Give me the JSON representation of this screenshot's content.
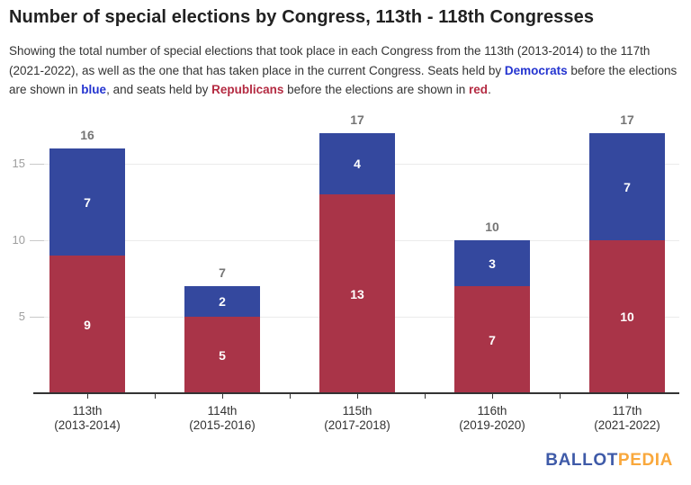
{
  "title": "Number of special elections by Congress, 113th - 118th Congresses",
  "subtitle": {
    "part1": "Showing the total number of special elections that took place in each Congress from the 113th (2013-2014) to the 117th (2021-2022), as well as the one that has taken place in the current Congress. Seats held by ",
    "democrats_word": "Democrats",
    "part2": " before the elections are shown in ",
    "blue_word": "blue",
    "part3": ", and seats held by ",
    "republicans_word": "Republicans",
    "part4": " before the elections are shown in ",
    "red_word": "red",
    "part5": "."
  },
  "text_colors": {
    "democrat_text": "#2434d0",
    "republican_text": "#b42b42"
  },
  "chart_data": {
    "type": "bar",
    "stacked": true,
    "title": "Number of special elections by Congress, 113th - 118th Congresses",
    "categories": [
      {
        "line1": "113th",
        "line2": "(2013-2014)"
      },
      {
        "line1": "114th",
        "line2": "(2015-2016)"
      },
      {
        "line1": "115th",
        "line2": "(2017-2018)"
      },
      {
        "line1": "116th",
        "line2": "(2019-2020)"
      },
      {
        "line1": "117th",
        "line2": "(2021-2022)"
      }
    ],
    "series": [
      {
        "name": "Republicans",
        "color": "#a93448",
        "values": [
          9,
          5,
          13,
          7,
          10
        ]
      },
      {
        "name": "Democrats",
        "color": "#34489e",
        "values": [
          7,
          2,
          4,
          3,
          7
        ]
      }
    ],
    "totals": [
      16,
      7,
      17,
      10,
      17
    ],
    "y_ticks": [
      5,
      10,
      15
    ],
    "ylim": [
      0,
      17
    ],
    "grid": true,
    "legend": "none",
    "total_label_color": "#757575",
    "y_label_color": "#9e9e9e",
    "category_label_color": "#333333",
    "gridline_color": "#ebebeb",
    "y_tick_stub_color": "#c9c9c9",
    "axis_color": "#333333"
  },
  "logo": {
    "ballot": "BALLOT",
    "pedia": "PEDIA",
    "ballot_color": "#3e5aa8",
    "pedia_color": "#f9a83c"
  }
}
